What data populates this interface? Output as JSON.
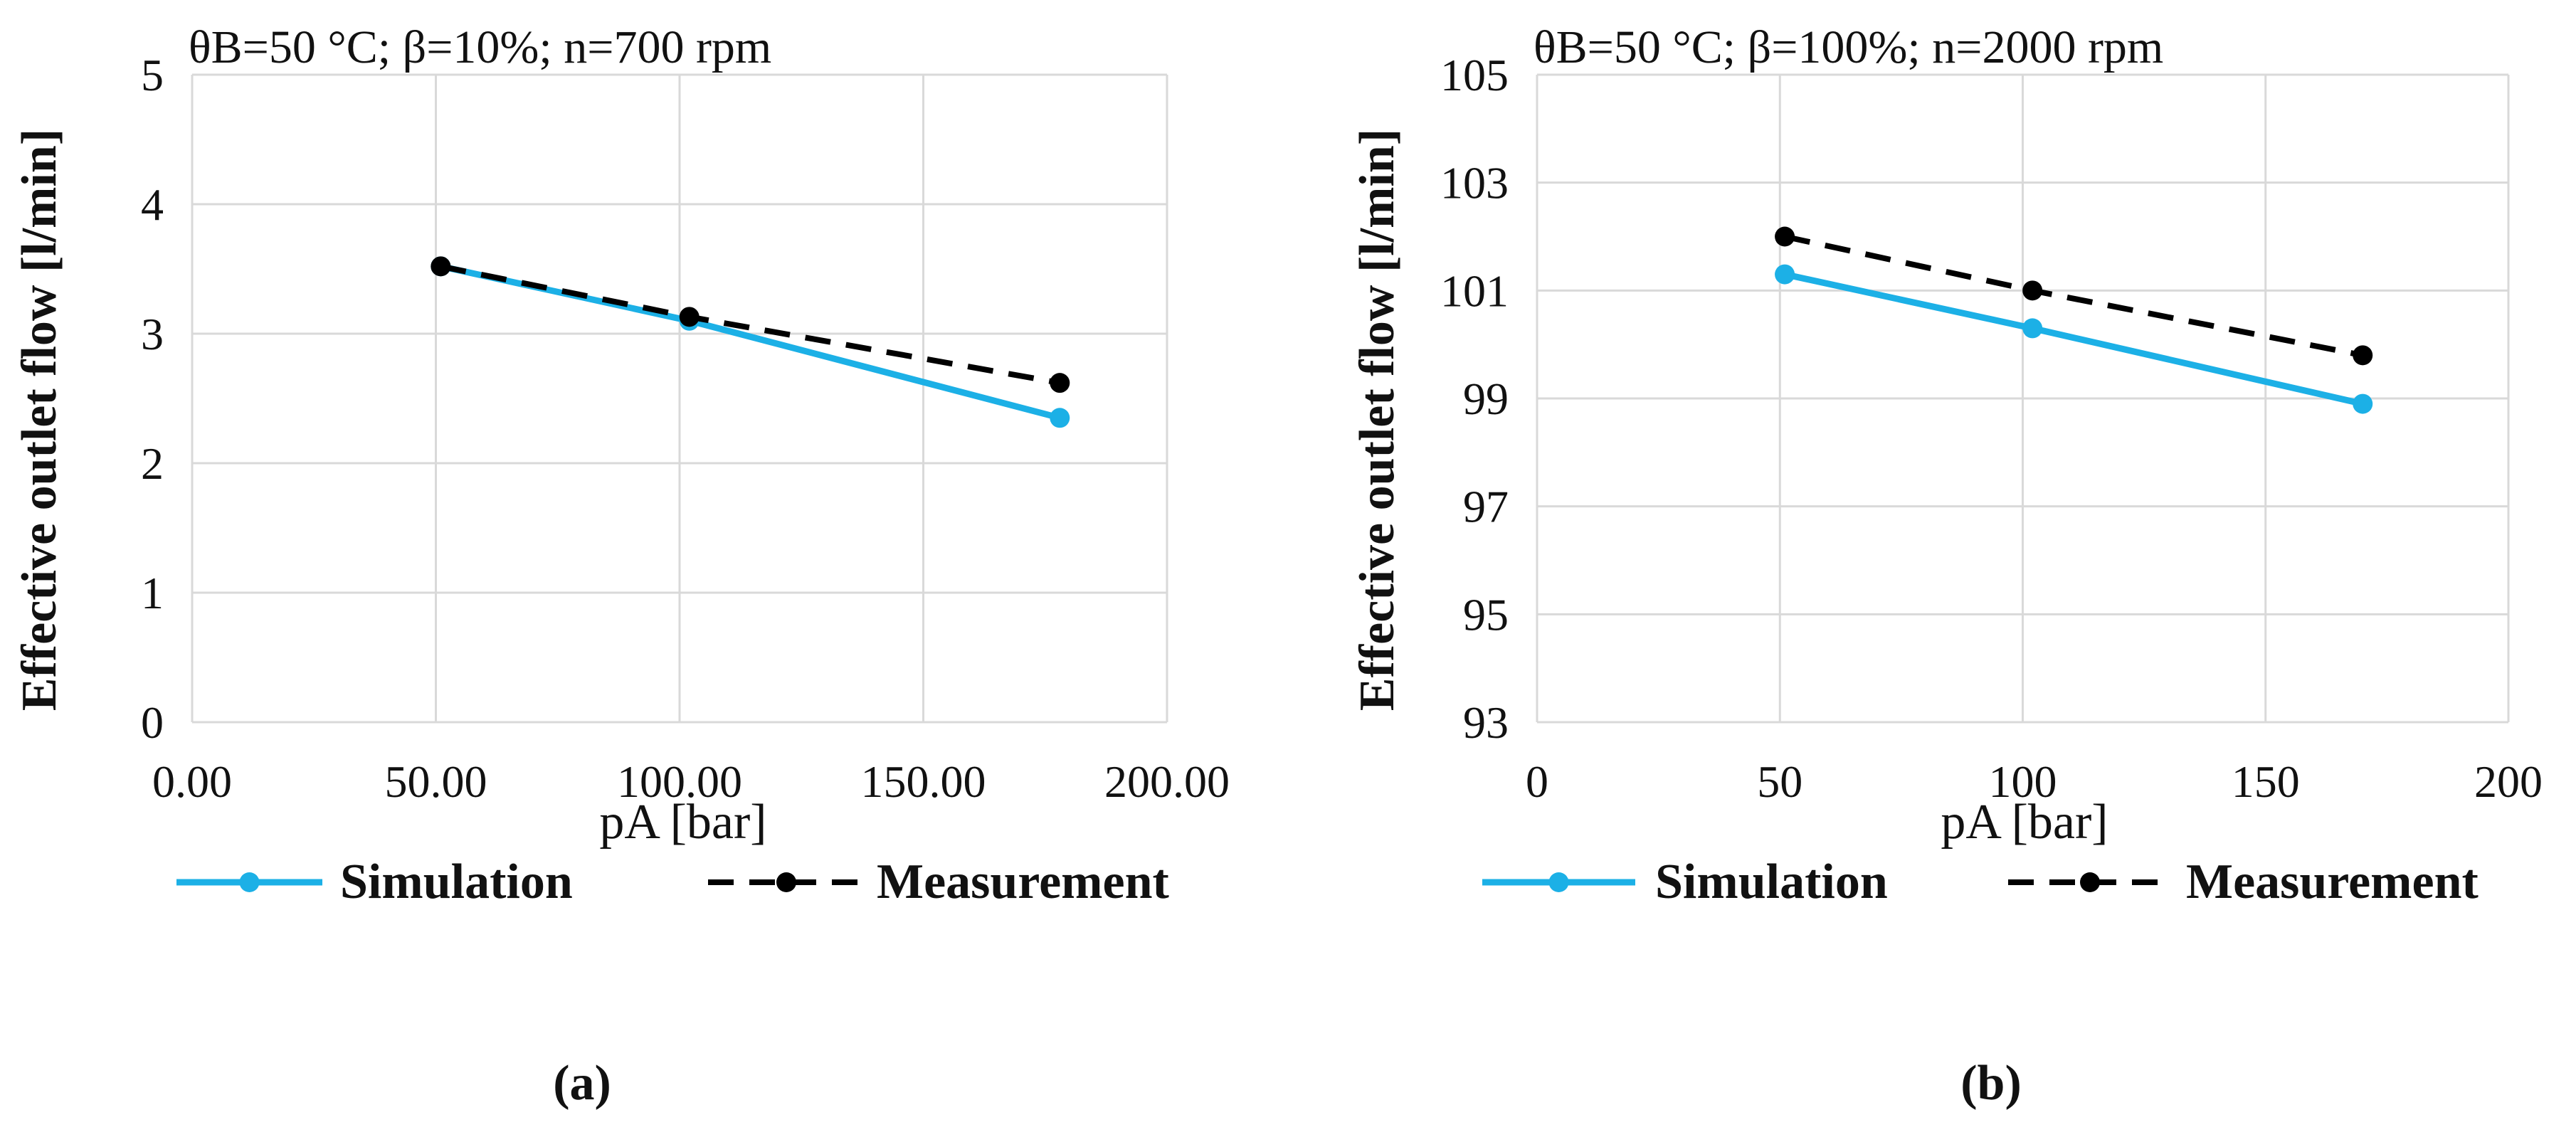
{
  "colors": {
    "simulation": "#1cb0e6",
    "measurement": "#000000",
    "grid": "#d9d9d9",
    "text": "#111111"
  },
  "chart_data": [
    {
      "type": "line",
      "panel_label": "(a)",
      "title": "θB=50 °C; β=10%; n=700 rpm",
      "xlabel": "pA [bar]",
      "ylabel": "Effective outlet flow  [l/min]",
      "xlim": [
        0,
        200
      ],
      "ylim": [
        0,
        5
      ],
      "x_ticks": [
        0,
        50,
        100,
        150,
        200
      ],
      "x_tick_labels": [
        "0.00",
        "50.00",
        "100.00",
        "150.00",
        "200.00"
      ],
      "y_ticks": [
        0,
        1,
        2,
        3,
        4,
        5
      ],
      "y_tick_labels": [
        "0",
        "1",
        "2",
        "3",
        "4",
        "5"
      ],
      "grid": true,
      "legend_position": "bottom",
      "series": [
        {
          "name": "Simulation",
          "style": "solid",
          "x": [
            51,
            102,
            178
          ],
          "y": [
            3.52,
            3.1,
            2.35
          ]
        },
        {
          "name": "Measurement",
          "style": "dashed",
          "x": [
            51,
            102,
            178
          ],
          "y": [
            3.52,
            3.13,
            2.62
          ]
        }
      ]
    },
    {
      "type": "line",
      "panel_label": "(b)",
      "title": "θB=50 °C; β=100%; n=2000 rpm",
      "xlabel": "pA [bar]",
      "ylabel": "Effective outlet flow  [l/min]",
      "xlim": [
        0,
        200
      ],
      "ylim": [
        93,
        105
      ],
      "x_ticks": [
        0,
        50,
        100,
        150,
        200
      ],
      "x_tick_labels": [
        "0",
        "50",
        "100",
        "150",
        "200"
      ],
      "y_ticks": [
        93,
        95,
        97,
        99,
        101,
        103,
        105
      ],
      "y_tick_labels": [
        "93",
        "95",
        "97",
        "99",
        "101",
        "103",
        "105"
      ],
      "grid": true,
      "legend_position": "bottom",
      "series": [
        {
          "name": "Simulation",
          "style": "solid",
          "x": [
            51,
            102,
            170
          ],
          "y": [
            101.3,
            100.3,
            98.9
          ]
        },
        {
          "name": "Measurement",
          "style": "dashed",
          "x": [
            51,
            102,
            170
          ],
          "y": [
            102.0,
            101.0,
            99.8
          ]
        }
      ]
    }
  ]
}
